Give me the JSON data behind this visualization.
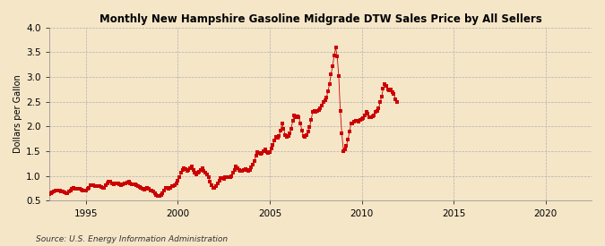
{
  "title": "Monthly New Hampshire Gasoline Midgrade DTW Sales Price by All Sellers",
  "ylabel": "Dollars per Gallon",
  "source": "Source: U.S. Energy Information Administration",
  "bg_color": "#F5E6C8",
  "line_color": "#CC0000",
  "marker_color": "#CC0000",
  "ylim": [
    0.5,
    4.0
  ],
  "yticks": [
    0.5,
    1.0,
    1.5,
    2.0,
    2.5,
    3.0,
    3.5,
    4.0
  ],
  "xtick_years": [
    1995,
    2000,
    2005,
    2010,
    2015,
    2020
  ],
  "xlim": [
    1993.0,
    2022.5
  ],
  "raw_data": [
    [
      1993,
      1,
      0.63
    ],
    [
      1993,
      2,
      0.65
    ],
    [
      1993,
      3,
      0.67
    ],
    [
      1993,
      4,
      0.69
    ],
    [
      1993,
      5,
      0.71
    ],
    [
      1993,
      6,
      0.71
    ],
    [
      1993,
      7,
      0.7
    ],
    [
      1993,
      8,
      0.7
    ],
    [
      1993,
      9,
      0.69
    ],
    [
      1993,
      10,
      0.68
    ],
    [
      1993,
      11,
      0.67
    ],
    [
      1993,
      12,
      0.65
    ],
    [
      1994,
      1,
      0.65
    ],
    [
      1994,
      2,
      0.68
    ],
    [
      1994,
      3,
      0.71
    ],
    [
      1994,
      4,
      0.74
    ],
    [
      1994,
      5,
      0.76
    ],
    [
      1994,
      6,
      0.75
    ],
    [
      1994,
      7,
      0.74
    ],
    [
      1994,
      8,
      0.75
    ],
    [
      1994,
      9,
      0.74
    ],
    [
      1994,
      10,
      0.72
    ],
    [
      1994,
      11,
      0.71
    ],
    [
      1994,
      12,
      0.7
    ],
    [
      1995,
      1,
      0.71
    ],
    [
      1995,
      2,
      0.74
    ],
    [
      1995,
      3,
      0.77
    ],
    [
      1995,
      4,
      0.81
    ],
    [
      1995,
      5,
      0.82
    ],
    [
      1995,
      6,
      0.81
    ],
    [
      1995,
      7,
      0.79
    ],
    [
      1995,
      8,
      0.8
    ],
    [
      1995,
      9,
      0.8
    ],
    [
      1995,
      10,
      0.79
    ],
    [
      1995,
      11,
      0.78
    ],
    [
      1995,
      12,
      0.76
    ],
    [
      1996,
      1,
      0.77
    ],
    [
      1996,
      2,
      0.81
    ],
    [
      1996,
      3,
      0.86
    ],
    [
      1996,
      4,
      0.89
    ],
    [
      1996,
      5,
      0.88
    ],
    [
      1996,
      6,
      0.86
    ],
    [
      1996,
      7,
      0.84
    ],
    [
      1996,
      8,
      0.85
    ],
    [
      1996,
      9,
      0.86
    ],
    [
      1996,
      10,
      0.85
    ],
    [
      1996,
      11,
      0.83
    ],
    [
      1996,
      12,
      0.81
    ],
    [
      1997,
      1,
      0.83
    ],
    [
      1997,
      2,
      0.85
    ],
    [
      1997,
      3,
      0.85
    ],
    [
      1997,
      4,
      0.87
    ],
    [
      1997,
      5,
      0.88
    ],
    [
      1997,
      6,
      0.86
    ],
    [
      1997,
      7,
      0.84
    ],
    [
      1997,
      8,
      0.84
    ],
    [
      1997,
      9,
      0.83
    ],
    [
      1997,
      10,
      0.81
    ],
    [
      1997,
      11,
      0.79
    ],
    [
      1997,
      12,
      0.78
    ],
    [
      1998,
      1,
      0.76
    ],
    [
      1998,
      2,
      0.74
    ],
    [
      1998,
      3,
      0.73
    ],
    [
      1998,
      4,
      0.74
    ],
    [
      1998,
      5,
      0.76
    ],
    [
      1998,
      6,
      0.74
    ],
    [
      1998,
      7,
      0.71
    ],
    [
      1998,
      8,
      0.7
    ],
    [
      1998,
      9,
      0.68
    ],
    [
      1998,
      10,
      0.65
    ],
    [
      1998,
      11,
      0.62
    ],
    [
      1998,
      12,
      0.59
    ],
    [
      1999,
      1,
      0.59
    ],
    [
      1999,
      2,
      0.61
    ],
    [
      1999,
      3,
      0.65
    ],
    [
      1999,
      4,
      0.71
    ],
    [
      1999,
      5,
      0.76
    ],
    [
      1999,
      6,
      0.77
    ],
    [
      1999,
      7,
      0.75
    ],
    [
      1999,
      8,
      0.77
    ],
    [
      1999,
      9,
      0.8
    ],
    [
      1999,
      10,
      0.8
    ],
    [
      1999,
      11,
      0.82
    ],
    [
      1999,
      12,
      0.85
    ],
    [
      2000,
      1,
      0.9
    ],
    [
      2000,
      2,
      0.97
    ],
    [
      2000,
      3,
      1.06
    ],
    [
      2000,
      4,
      1.12
    ],
    [
      2000,
      5,
      1.16
    ],
    [
      2000,
      6,
      1.14
    ],
    [
      2000,
      7,
      1.11
    ],
    [
      2000,
      8,
      1.13
    ],
    [
      2000,
      9,
      1.16
    ],
    [
      2000,
      10,
      1.19
    ],
    [
      2000,
      11,
      1.13
    ],
    [
      2000,
      12,
      1.06
    ],
    [
      2001,
      1,
      1.03
    ],
    [
      2001,
      2,
      1.06
    ],
    [
      2001,
      3,
      1.09
    ],
    [
      2001,
      4,
      1.13
    ],
    [
      2001,
      5,
      1.16
    ],
    [
      2001,
      6,
      1.11
    ],
    [
      2001,
      7,
      1.06
    ],
    [
      2001,
      8,
      1.04
    ],
    [
      2001,
      9,
      0.97
    ],
    [
      2001,
      10,
      0.88
    ],
    [
      2001,
      11,
      0.81
    ],
    [
      2001,
      12,
      0.76
    ],
    [
      2002,
      1,
      0.76
    ],
    [
      2002,
      2,
      0.79
    ],
    [
      2002,
      3,
      0.85
    ],
    [
      2002,
      4,
      0.91
    ],
    [
      2002,
      5,
      0.96
    ],
    [
      2002,
      6,
      0.96
    ],
    [
      2002,
      7,
      0.95
    ],
    [
      2002,
      8,
      0.98
    ],
    [
      2002,
      9,
      0.98
    ],
    [
      2002,
      10,
      0.97
    ],
    [
      2002,
      11,
      0.98
    ],
    [
      2002,
      12,
      1.0
    ],
    [
      2003,
      1,
      1.06
    ],
    [
      2003,
      2,
      1.13
    ],
    [
      2003,
      3,
      1.19
    ],
    [
      2003,
      4,
      1.15
    ],
    [
      2003,
      5,
      1.13
    ],
    [
      2003,
      6,
      1.11
    ],
    [
      2003,
      7,
      1.11
    ],
    [
      2003,
      8,
      1.13
    ],
    [
      2003,
      9,
      1.14
    ],
    [
      2003,
      10,
      1.13
    ],
    [
      2003,
      11,
      1.11
    ],
    [
      2003,
      12,
      1.13
    ],
    [
      2004,
      1,
      1.18
    ],
    [
      2004,
      2,
      1.23
    ],
    [
      2004,
      3,
      1.31
    ],
    [
      2004,
      4,
      1.41
    ],
    [
      2004,
      5,
      1.49
    ],
    [
      2004,
      6,
      1.46
    ],
    [
      2004,
      7,
      1.44
    ],
    [
      2004,
      8,
      1.46
    ],
    [
      2004,
      9,
      1.51
    ],
    [
      2004,
      10,
      1.54
    ],
    [
      2004,
      11,
      1.49
    ],
    [
      2004,
      12,
      1.46
    ],
    [
      2005,
      1,
      1.49
    ],
    [
      2005,
      2,
      1.55
    ],
    [
      2005,
      3,
      1.63
    ],
    [
      2005,
      4,
      1.71
    ],
    [
      2005,
      5,
      1.79
    ],
    [
      2005,
      6,
      1.78
    ],
    [
      2005,
      7,
      1.81
    ],
    [
      2005,
      8,
      1.91
    ],
    [
      2005,
      9,
      2.06
    ],
    [
      2005,
      10,
      1.96
    ],
    [
      2005,
      11,
      1.83
    ],
    [
      2005,
      12,
      1.79
    ],
    [
      2006,
      1,
      1.81
    ],
    [
      2006,
      2,
      1.86
    ],
    [
      2006,
      3,
      1.96
    ],
    [
      2006,
      4,
      2.11
    ],
    [
      2006,
      5,
      2.23
    ],
    [
      2006,
      6,
      2.19
    ],
    [
      2006,
      7,
      2.21
    ],
    [
      2006,
      8,
      2.19
    ],
    [
      2006,
      9,
      2.06
    ],
    [
      2006,
      10,
      1.91
    ],
    [
      2006,
      11,
      1.81
    ],
    [
      2006,
      12,
      1.79
    ],
    [
      2007,
      1,
      1.83
    ],
    [
      2007,
      2,
      1.89
    ],
    [
      2007,
      3,
      1.98
    ],
    [
      2007,
      4,
      2.13
    ],
    [
      2007,
      5,
      2.29
    ],
    [
      2007,
      6,
      2.31
    ],
    [
      2007,
      7,
      2.29
    ],
    [
      2007,
      8,
      2.31
    ],
    [
      2007,
      9,
      2.33
    ],
    [
      2007,
      10,
      2.36
    ],
    [
      2007,
      11,
      2.43
    ],
    [
      2007,
      12,
      2.49
    ],
    [
      2008,
      1,
      2.53
    ],
    [
      2008,
      2,
      2.59
    ],
    [
      2008,
      3,
      2.71
    ],
    [
      2008,
      4,
      2.86
    ],
    [
      2008,
      5,
      3.06
    ],
    [
      2008,
      6,
      3.21
    ],
    [
      2008,
      7,
      3.43
    ],
    [
      2008,
      8,
      3.59
    ],
    [
      2008,
      9,
      3.41
    ],
    [
      2008,
      10,
      3.01
    ],
    [
      2008,
      11,
      2.31
    ],
    [
      2008,
      12,
      1.86
    ],
    [
      2009,
      1,
      1.51
    ],
    [
      2009,
      2,
      1.53
    ],
    [
      2009,
      3,
      1.61
    ],
    [
      2009,
      4,
      1.73
    ],
    [
      2009,
      5,
      1.89
    ],
    [
      2009,
      6,
      2.06
    ],
    [
      2009,
      7,
      2.06
    ],
    [
      2009,
      8,
      2.09
    ],
    [
      2009,
      9,
      2.11
    ],
    [
      2009,
      10,
      2.11
    ],
    [
      2009,
      11,
      2.09
    ],
    [
      2009,
      12,
      2.13
    ],
    [
      2010,
      1,
      2.16
    ],
    [
      2010,
      2,
      2.17
    ],
    [
      2010,
      3,
      2.23
    ],
    [
      2010,
      4,
      2.29
    ],
    [
      2010,
      5,
      2.26
    ],
    [
      2010,
      6,
      2.19
    ],
    [
      2010,
      7,
      2.19
    ],
    [
      2010,
      8,
      2.21
    ],
    [
      2010,
      9,
      2.23
    ],
    [
      2010,
      10,
      2.29
    ],
    [
      2010,
      11,
      2.31
    ],
    [
      2010,
      12,
      2.36
    ],
    [
      2011,
      1,
      2.49
    ],
    [
      2011,
      2,
      2.61
    ],
    [
      2011,
      3,
      2.76
    ],
    [
      2011,
      4,
      2.86
    ],
    [
      2011,
      5,
      2.81
    ],
    [
      2011,
      6,
      2.75
    ],
    [
      2011,
      7,
      2.72
    ],
    [
      2011,
      8,
      2.75
    ],
    [
      2011,
      9,
      2.7
    ],
    [
      2011,
      10,
      2.65
    ],
    [
      2011,
      11,
      2.55
    ],
    [
      2011,
      12,
      2.5
    ]
  ]
}
